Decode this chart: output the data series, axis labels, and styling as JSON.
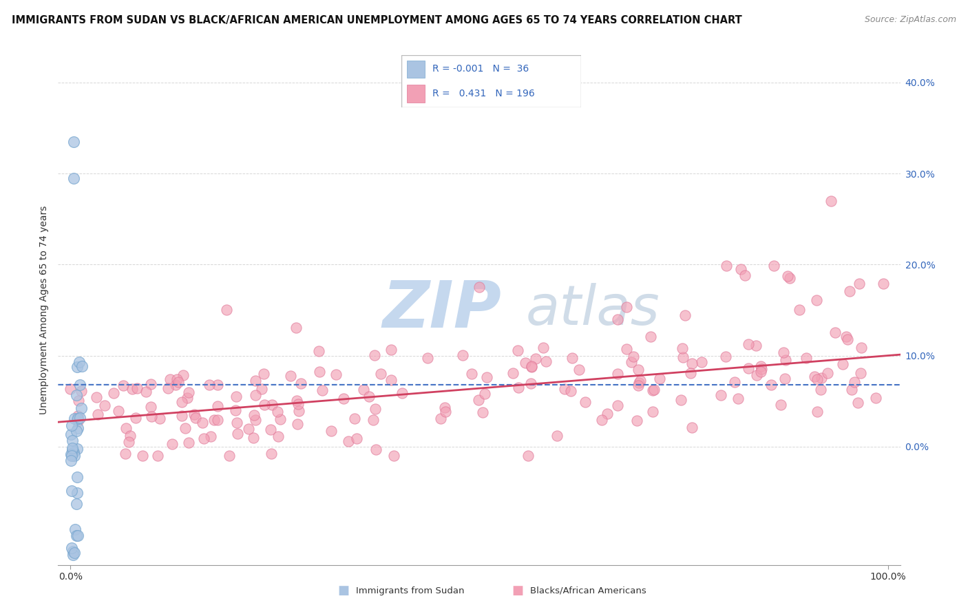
{
  "title": "IMMIGRANTS FROM SUDAN VS BLACK/AFRICAN AMERICAN UNEMPLOYMENT AMONG AGES 65 TO 74 YEARS CORRELATION CHART",
  "source": "Source: ZipAtlas.com",
  "ylabel": "Unemployment Among Ages 65 to 74 years",
  "yticks": [
    0.0,
    0.1,
    0.2,
    0.3,
    0.4
  ],
  "ytick_labels": [
    "0.0%",
    "10.0%",
    "20.0%",
    "30.0%",
    "40.0%"
  ],
  "ylim": [
    -0.13,
    0.43
  ],
  "xlim": [
    -0.015,
    1.015
  ],
  "legend_R1": "-0.001",
  "legend_N1": "36",
  "legend_R2": "0.431",
  "legend_N2": "196",
  "legend_label1": "Immigrants from Sudan",
  "legend_label2": "Blacks/African Americans",
  "blue_color": "#aac4e2",
  "pink_color": "#f2a0b5",
  "blue_edge_color": "#7aa8d0",
  "pink_edge_color": "#e07898",
  "blue_line_color": "#4472c4",
  "pink_line_color": "#d04060",
  "watermark_zip_color": "#c5d8ee",
  "watermark_atlas_color": "#d0dce8",
  "title_fontsize": 10.5,
  "source_fontsize": 9,
  "axis_label_fontsize": 10,
  "tick_fontsize": 10,
  "legend_fontsize": 10,
  "blue_intercept": 0.068,
  "blue_slope": -0.0001,
  "pink_intercept": 0.028,
  "pink_slope": 0.072
}
